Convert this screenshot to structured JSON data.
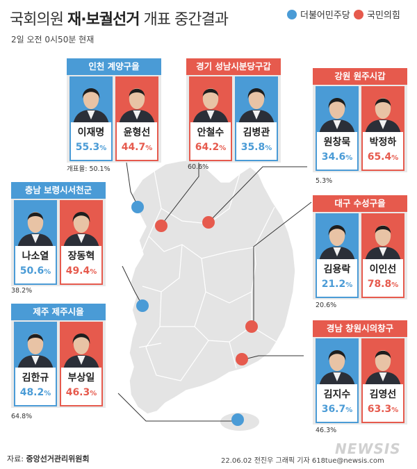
{
  "title": {
    "pre": "국회의원 ",
    "bold": "재·보궐선거",
    "post": " 개표 중간결과"
  },
  "subtitle": "2일 오전 0시50분 현재",
  "legend": [
    {
      "label": "더불어민주당",
      "color": "#4a9bd6"
    },
    {
      "label": "국민의힘",
      "color": "#e65a4d"
    }
  ],
  "colors": {
    "dem": "#4a9bd6",
    "ppp": "#e65a4d",
    "map_land": "#e4e4e4",
    "map_border": "#ffffff"
  },
  "districts": [
    {
      "id": "incheon",
      "header": "인천 계양구을",
      "header_party": "dem",
      "turnout": "개표율: 50.1%",
      "left": {
        "name": "이재명",
        "pct": "55.3",
        "party": "dem"
      },
      "right": {
        "name": "윤형선",
        "pct": "44.7",
        "party": "ppp"
      }
    },
    {
      "id": "gyeonggi",
      "header": "경기 성남시분당구갑",
      "header_party": "ppp",
      "turnout": "60.6%",
      "left": {
        "name": "안철수",
        "pct": "64.2",
        "party": "ppp"
      },
      "right": {
        "name": "김병관",
        "pct": "35.8",
        "party": "dem"
      }
    },
    {
      "id": "gangwon",
      "header": "강원 원주시갑",
      "header_party": "ppp",
      "turnout": "5.3%",
      "left": {
        "name": "원창묵",
        "pct": "34.6",
        "party": "dem"
      },
      "right": {
        "name": "박정하",
        "pct": "65.4",
        "party": "ppp"
      }
    },
    {
      "id": "chungnam",
      "header": "충남 보령시서천군",
      "header_party": "dem",
      "turnout": "38.2%",
      "left": {
        "name": "나소열",
        "pct": "50.6",
        "party": "dem"
      },
      "right": {
        "name": "장동혁",
        "pct": "49.4",
        "party": "ppp"
      }
    },
    {
      "id": "daegu",
      "header": "대구 수성구을",
      "header_party": "ppp",
      "turnout": "20.6%",
      "left": {
        "name": "김용락",
        "pct": "21.2",
        "party": "dem"
      },
      "right": {
        "name": "이인선",
        "pct": "78.8",
        "party": "ppp"
      }
    },
    {
      "id": "jeju",
      "header": "제주 제주시을",
      "header_party": "dem",
      "turnout": "64.8%",
      "left": {
        "name": "김한규",
        "pct": "48.2",
        "party": "dem"
      },
      "right": {
        "name": "부상일",
        "pct": "46.3",
        "party": "ppp"
      }
    },
    {
      "id": "gyeongnam",
      "header": "경남 창원시의창구",
      "header_party": "ppp",
      "turnout": "46.3%",
      "left": {
        "name": "김지수",
        "pct": "36.7",
        "party": "dem"
      },
      "right": {
        "name": "김영선",
        "pct": "63.3",
        "party": "ppp"
      }
    }
  ],
  "pct_unit": "%",
  "footer": {
    "source_label": "자료: ",
    "source_name": "중앙선거관리위원회",
    "credit": "22.06.02 전진우 그래픽 기자 618tue@newsis.com"
  },
  "watermark": "NEWSIS",
  "icons": {
    "map": "korea-peninsula-map",
    "photo": "candidate-portrait"
  }
}
